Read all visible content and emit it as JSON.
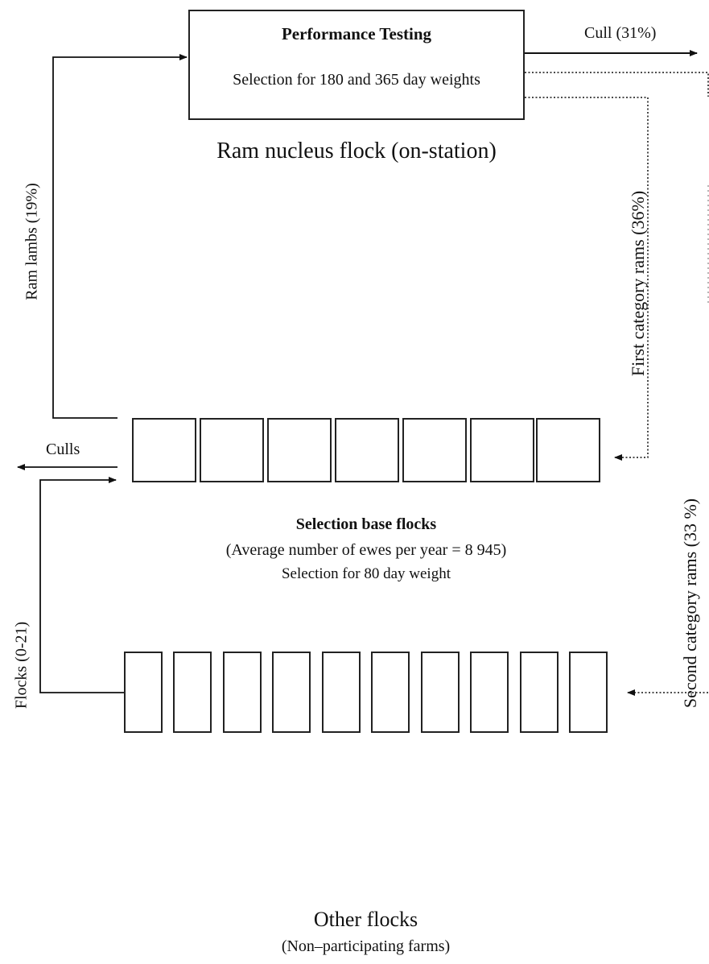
{
  "nucleus": {
    "box_title": "Performance Testing",
    "box_subtitle": "Selection for 180 and 365 day weights",
    "caption": "Ram nucleus flock (on-station)"
  },
  "flows": {
    "cull": "Cull (31%)",
    "ram_lambs": "Ram lambs (19%)",
    "first_category": "First category rams (36%)",
    "second_category": "Second category rams (33 %)",
    "culls": "Culls",
    "flocks": "Flocks (0-21)"
  },
  "selection_base": {
    "title": "Selection base flocks",
    "line2": "(Average number of ewes per year = 8 945)",
    "line3": "Selection for 80 day weight",
    "box_count": 7
  },
  "other_flocks": {
    "title": "Other flocks",
    "subtitle": "(Non–participating farms)",
    "box_count": 10
  }
}
